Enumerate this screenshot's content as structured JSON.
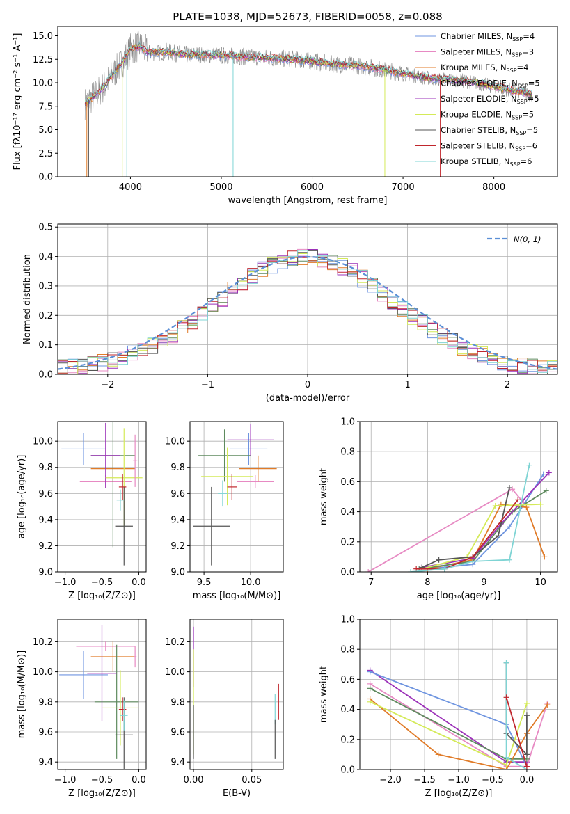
{
  "title": "PLATE=1038, MJD=52673, FIBERID=0058, z=0.088",
  "colors": {
    "chabrier_miles": "#6f95e0",
    "salpeter_miles": "#e78ac3",
    "kroupa_miles": "#e07b28",
    "chabrier_elodie": "#5e8a5e",
    "salpeter_elodie": "#9b30b8",
    "kroupa_elodie": "#d4ea58",
    "chabrier_stelib": "#555555",
    "salpeter_stelib": "#c0272d",
    "kroupa_stelib": "#7fd4d4",
    "data_grey": "#888888",
    "normal_curve": "#5b8fd6",
    "grid": "#b0b0b0"
  },
  "chart_data": [
    {
      "id": "spectrum",
      "type": "line",
      "title": "PLATE=1038, MJD=52673, FIBERID=0058, z=0.088",
      "xlabel": "wavelength [Angstrom, rest frame]",
      "ylabel": "Flux [fλ10⁻¹⁷ erg cm⁻² s⁻¹ A⁻¹]",
      "xlim": [
        3200,
        8700
      ],
      "ylim": [
        0,
        16
      ],
      "xticks": [
        4000,
        5000,
        6000,
        7000,
        8000
      ],
      "yticks": [
        0.0,
        2.5,
        5.0,
        7.5,
        10.0,
        12.5,
        15.0
      ],
      "grid": false,
      "legend_position": "top-right",
      "legend": [
        "Chabrier MILES, N_SSP=4",
        "Salpeter MILES, N_SSP=3",
        "Kroupa MILES, N_SSP=4",
        "Chabrier ELODIE, N_SSP=5",
        "Salpeter ELODIE, N_SSP=5",
        "Kroupa ELODIE, N_SSP=5",
        "Chabrier STELIB, N_SSP=5",
        "Salpeter STELIB, N_SSP=6",
        "Kroupa STELIB, N_SSP=6"
      ],
      "continuum_x": [
        3500,
        3600,
        3700,
        3800,
        3900,
        4000,
        4100,
        4200,
        4400,
        4600,
        4800,
        5000,
        5200,
        5400,
        5600,
        5800,
        6000,
        6200,
        6400,
        6600,
        6800,
        7000,
        7200,
        7400,
        7600,
        7800,
        8000,
        8200,
        8400
      ],
      "continuum_y": [
        7.8,
        8.6,
        9.5,
        10.8,
        12.0,
        13.6,
        13.9,
        13.2,
        13.3,
        13.0,
        13.0,
        12.9,
        12.8,
        12.7,
        12.6,
        12.5,
        12.3,
        12.0,
        11.9,
        11.7,
        11.4,
        11.0,
        10.6,
        10.4,
        10.3,
        10.0,
        9.6,
        9.2,
        8.8
      ]
    },
    {
      "id": "residuals",
      "type": "line",
      "xlabel": "(data-model)/error",
      "ylabel": "Normed distribution",
      "xlim": [
        -2.5,
        2.5
      ],
      "ylim": [
        0,
        0.51
      ],
      "xticks": [
        -2,
        -1,
        0,
        1,
        2
      ],
      "yticks": [
        0.0,
        0.1,
        0.2,
        0.3,
        0.4,
        0.5
      ],
      "grid": true,
      "legend_position": "top-right",
      "legend": [
        "N(0, 1)"
      ],
      "bin_width": 0.1,
      "bin_start": -2.5,
      "histogram_values": [
        0.02,
        0.022,
        0.026,
        0.032,
        0.038,
        0.046,
        0.056,
        0.067,
        0.081,
        0.096,
        0.114,
        0.134,
        0.156,
        0.18,
        0.205,
        0.231,
        0.257,
        0.284,
        0.31,
        0.334,
        0.355,
        0.373,
        0.387,
        0.396,
        0.4,
        0.398,
        0.392,
        0.381,
        0.366,
        0.347,
        0.325,
        0.301,
        0.276,
        0.25,
        0.224,
        0.198,
        0.173,
        0.15,
        0.129,
        0.11,
        0.092,
        0.077,
        0.064,
        0.052,
        0.042,
        0.034,
        0.028,
        0.024,
        0.021,
        0.02
      ]
    },
    {
      "id": "age_vs_Z",
      "type": "scatter",
      "xlabel": "Z [log₁₀(Z/Z⊙)]",
      "ylabel": "age  [log₁₀(age/yr)]",
      "xlim": [
        -1.1,
        0.1
      ],
      "ylim": [
        9.0,
        10.15
      ],
      "xticks": [
        -1.0,
        -0.5,
        0.0
      ],
      "yticks": [
        9.0,
        9.2,
        9.4,
        9.6,
        9.8,
        10.0
      ],
      "grid": true,
      "points": [
        {
          "x": -0.75,
          "y": 9.94,
          "xerr": 0.3,
          "yerr": 0.12,
          "c": "chabrier_miles"
        },
        {
          "x": -0.45,
          "y": 9.69,
          "xerr": 0.35,
          "yerr": 0.05,
          "c": "salpeter_miles"
        },
        {
          "x": -0.35,
          "y": 9.79,
          "xerr": 0.3,
          "yerr": 0.1,
          "c": "kroupa_miles"
        },
        {
          "x": -0.35,
          "y": 9.89,
          "xerr": 0.3,
          "yerr": 0.7,
          "c": "chabrier_elodie"
        },
        {
          "x": -0.45,
          "y": 9.89,
          "xerr": 0.2,
          "yerr": 0.25,
          "c": "salpeter_elodie"
        },
        {
          "x": -0.2,
          "y": 9.72,
          "xerr": 0.25,
          "yerr": 0.38,
          "c": "kroupa_elodie"
        },
        {
          "x": -0.2,
          "y": 9.35,
          "xerr": 0.12,
          "yerr": 0.3,
          "c": "chabrier_stelib"
        },
        {
          "x": -0.22,
          "y": 9.65,
          "xerr": 0.05,
          "yerr": 0.1,
          "c": "salpeter_stelib"
        },
        {
          "x": -0.25,
          "y": 9.55,
          "xerr": 0.05,
          "yerr": 0.08,
          "c": "kroupa_stelib"
        },
        {
          "x": -0.05,
          "y": 9.85,
          "xerr": 0.03,
          "yerr": 0.2,
          "c": "salpeter_miles"
        }
      ]
    },
    {
      "id": "age_vs_mass",
      "type": "scatter",
      "xlabel": "mass [log₁₀(M/M⊙)]",
      "ylabel": "",
      "xlim": [
        9.35,
        10.35
      ],
      "ylim": [
        9.0,
        10.15
      ],
      "xticks": [
        9.5,
        10.0
      ],
      "yticks": [
        9.0,
        9.2,
        9.4,
        9.6,
        9.8,
        10.0
      ],
      "grid": true,
      "points": [
        {
          "x": 9.98,
          "y": 9.94,
          "xerr": 0.2,
          "yerr": 0.12,
          "c": "chabrier_miles"
        },
        {
          "x": 10.05,
          "y": 9.69,
          "xerr": 0.2,
          "yerr": 0.05,
          "c": "salpeter_miles"
        },
        {
          "x": 10.08,
          "y": 9.79,
          "xerr": 0.2,
          "yerr": 0.1,
          "c": "kroupa_miles"
        },
        {
          "x": 9.72,
          "y": 9.89,
          "xerr": 0.28,
          "yerr": 0.2,
          "c": "chabrier_elodie"
        },
        {
          "x": 10.0,
          "y": 10.01,
          "xerr": 0.25,
          "yerr": 0.12,
          "c": "salpeter_elodie"
        },
        {
          "x": 9.75,
          "y": 9.73,
          "xerr": 0.28,
          "yerr": 0.22,
          "c": "kroupa_elodie"
        },
        {
          "x": 9.58,
          "y": 9.35,
          "xerr": 0.2,
          "yerr": 0.3,
          "c": "chabrier_stelib"
        },
        {
          "x": 9.8,
          "y": 9.65,
          "xerr": 0.05,
          "yerr": 0.1,
          "c": "salpeter_stelib"
        },
        {
          "x": 9.7,
          "y": 9.6,
          "xerr": 0.05,
          "yerr": 0.1,
          "c": "kroupa_stelib"
        }
      ]
    },
    {
      "id": "weight_vs_age",
      "type": "line",
      "xlabel": "age  [log₁₀(age/yr)]",
      "ylabel": "mass weight",
      "xlim": [
        6.8,
        10.3
      ],
      "ylim": [
        0,
        1.0
      ],
      "xticks": [
        7,
        8,
        9,
        10
      ],
      "yticks": [
        0.0,
        0.2,
        0.4,
        0.6,
        0.8,
        1.0
      ],
      "grid": true,
      "series": [
        {
          "c": "salpeter_miles",
          "x": [
            6.95,
            9.5,
            9.7
          ],
          "y": [
            0.0,
            0.55,
            0.46
          ]
        },
        {
          "c": "chabrier_miles",
          "x": [
            8.0,
            8.8,
            9.45,
            10.05
          ],
          "y": [
            0.02,
            0.05,
            0.3,
            0.65
          ]
        },
        {
          "c": "kroupa_miles",
          "x": [
            8.0,
            8.8,
            9.3,
            9.75,
            10.07
          ],
          "y": [
            0.02,
            0.08,
            0.45,
            0.43,
            0.1
          ]
        },
        {
          "c": "chabrier_elodie",
          "x": [
            7.85,
            8.8,
            9.5,
            10.1
          ],
          "y": [
            0.02,
            0.07,
            0.4,
            0.54
          ]
        },
        {
          "c": "salpeter_elodie",
          "x": [
            7.9,
            8.8,
            9.3,
            10.15
          ],
          "y": [
            0.03,
            0.09,
            0.32,
            0.66
          ]
        },
        {
          "c": "kroupa_elodie",
          "x": [
            7.9,
            8.7,
            9.2,
            10.0
          ],
          "y": [
            0.02,
            0.1,
            0.44,
            0.45
          ]
        },
        {
          "c": "chabrier_stelib",
          "x": [
            7.9,
            8.2,
            8.8,
            9.25,
            9.45
          ],
          "y": [
            0.03,
            0.08,
            0.1,
            0.24,
            0.56
          ]
        },
        {
          "c": "salpeter_stelib",
          "x": [
            7.8,
            8.3,
            8.8,
            9.6
          ],
          "y": [
            0.02,
            0.02,
            0.1,
            0.48
          ]
        },
        {
          "c": "kroupa_stelib",
          "x": [
            7.7,
            8.3,
            8.8,
            9.45,
            9.8
          ],
          "y": [
            0.0,
            0.02,
            0.07,
            0.08,
            0.71
          ]
        }
      ]
    },
    {
      "id": "mass_vs_Z",
      "type": "scatter",
      "xlabel": "Z [log₁₀(Z/Z⊙)]",
      "ylabel": "mass [log₁₀(M/M⊙)]",
      "xlim": [
        -1.1,
        0.1
      ],
      "ylim": [
        9.35,
        10.35
      ],
      "xticks": [
        -1.0,
        -0.5,
        0.0
      ],
      "yticks": [
        9.4,
        9.6,
        9.8,
        10.0,
        10.2
      ],
      "grid": true,
      "points": [
        {
          "x": -0.75,
          "y": 9.98,
          "xerr": 0.33,
          "yerr": 0.16,
          "c": "chabrier_miles"
        },
        {
          "x": -0.45,
          "y": 10.17,
          "xerr": 0.4,
          "yerr": 0.03,
          "c": "salpeter_miles"
        },
        {
          "x": -0.35,
          "y": 10.1,
          "xerr": 0.3,
          "yerr": 0.1,
          "c": "kroupa_miles"
        },
        {
          "x": -0.3,
          "y": 9.8,
          "xerr": 0.3,
          "yerr": 0.38,
          "c": "chabrier_elodie"
        },
        {
          "x": -0.5,
          "y": 9.99,
          "xerr": 0.2,
          "yerr": 0.32,
          "c": "salpeter_elodie"
        },
        {
          "x": -0.25,
          "y": 9.76,
          "xerr": 0.25,
          "yerr": 0.25,
          "c": "kroupa_elodie"
        },
        {
          "x": -0.2,
          "y": 9.58,
          "xerr": 0.12,
          "yerr": 0.25,
          "c": "chabrier_stelib"
        },
        {
          "x": -0.22,
          "y": 9.75,
          "xerr": 0.05,
          "yerr": 0.08,
          "c": "salpeter_stelib"
        },
        {
          "x": -0.2,
          "y": 9.71,
          "xerr": 0.05,
          "yerr": 0.1,
          "c": "kroupa_stelib"
        },
        {
          "x": -0.05,
          "y": 10.1,
          "xerr": 0.02,
          "yerr": 0.07,
          "c": "salpeter_miles"
        }
      ]
    },
    {
      "id": "mass_vs_ebv",
      "type": "scatter",
      "xlabel": "E(B-V)",
      "ylabel": "",
      "xlim": [
        -0.003,
        0.077
      ],
      "ylim": [
        9.35,
        10.35
      ],
      "xticks": [
        0.0,
        0.05
      ],
      "yticks": [
        9.4,
        9.6,
        9.8,
        10.0,
        10.2
      ],
      "grid": true,
      "points": [
        {
          "x": 0.0,
          "y": 10.1,
          "xerr": 0.0,
          "yerr": 0.2,
          "c": "salpeter_elodie"
        },
        {
          "x": 0.0,
          "y": 9.8,
          "xerr": 0.0,
          "yerr": 0.35,
          "c": "kroupa_elodie"
        },
        {
          "x": 0.0,
          "y": 9.6,
          "xerr": 0.0,
          "yerr": 0.18,
          "c": "chabrier_stelib"
        },
        {
          "x": 0.07,
          "y": 9.75,
          "xerr": 0.0,
          "yerr": 0.1,
          "c": "kroupa_stelib"
        },
        {
          "x": 0.07,
          "y": 9.55,
          "xerr": 0.0,
          "yerr": 0.13,
          "c": "chabrier_stelib"
        },
        {
          "x": 0.073,
          "y": 9.8,
          "xerr": 0.0,
          "yerr": 0.12,
          "c": "salpeter_stelib"
        }
      ]
    },
    {
      "id": "weight_vs_Z",
      "type": "line",
      "xlabel": "Z [log₁₀(Z/Z⊙)]",
      "ylabel": "mass weight",
      "xlim": [
        -2.45,
        0.45
      ],
      "ylim": [
        0,
        1.0
      ],
      "xticks": [
        -2.0,
        -1.5,
        -1.0,
        -0.5,
        0.0
      ],
      "yticks": [
        0.0,
        0.2,
        0.4,
        0.6,
        0.8,
        1.0
      ],
      "grid": true,
      "series": [
        {
          "c": "salpeter_elodie",
          "x": [
            -2.3,
            -0.3,
            0.0
          ],
          "y": [
            0.66,
            0.05,
            0.05
          ]
        },
        {
          "c": "chabrier_miles",
          "x": [
            -2.3,
            -0.3,
            0.0
          ],
          "y": [
            0.65,
            0.3,
            0.02
          ]
        },
        {
          "c": "salpeter_miles",
          "x": [
            -2.3,
            -0.3,
            0.0,
            0.3
          ],
          "y": [
            0.57,
            0.02,
            0.02,
            0.44
          ]
        },
        {
          "c": "chabrier_elodie",
          "x": [
            -2.3,
            -0.3,
            0.0
          ],
          "y": [
            0.54,
            0.07,
            0.07
          ]
        },
        {
          "c": "kroupa_miles",
          "x": [
            -2.3,
            -1.3,
            -0.3,
            0.0,
            0.3
          ],
          "y": [
            0.47,
            0.1,
            0.0,
            0.24,
            0.43
          ]
        },
        {
          "c": "kroupa_elodie",
          "x": [
            -2.3,
            -0.3,
            0.0
          ],
          "y": [
            0.45,
            0.03,
            0.44
          ]
        },
        {
          "c": "chabrier_stelib",
          "x": [
            -0.3,
            -0.3,
            0.0,
            0.0
          ],
          "y": [
            0.71,
            0.24,
            0.1,
            0.36
          ]
        },
        {
          "c": "kroupa_stelib",
          "x": [
            -0.3,
            -0.3,
            0.0
          ],
          "y": [
            0.71,
            0.08,
            0.0
          ]
        },
        {
          "c": "salpeter_stelib",
          "x": [
            -0.3,
            0.0
          ],
          "y": [
            0.48,
            0.02
          ]
        }
      ]
    }
  ]
}
